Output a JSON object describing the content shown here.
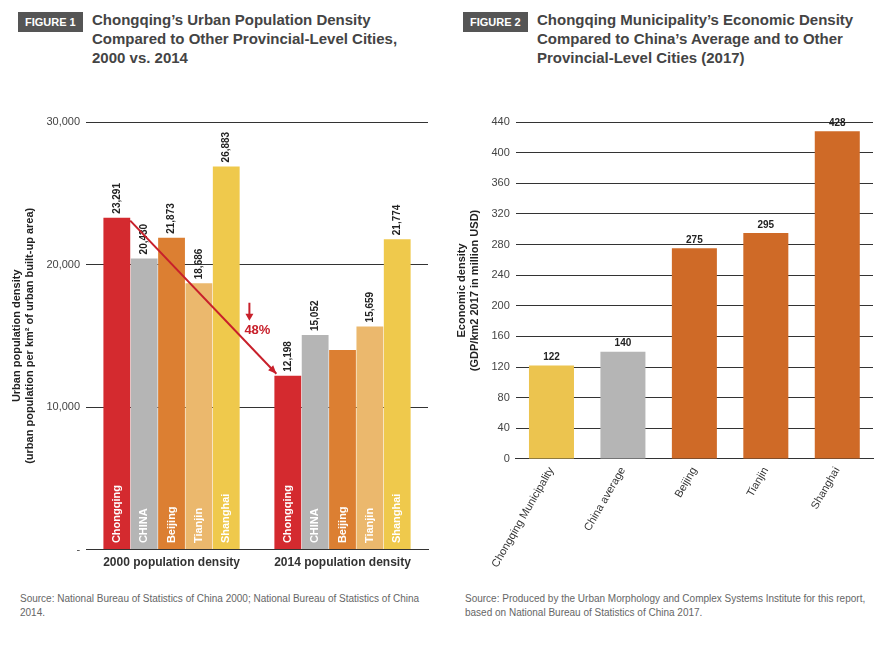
{
  "chart_data": [
    {
      "type": "bar",
      "label": "FIGURE 1",
      "title": "Chongqing’s Urban Population Density Compared to Other Provincial-Level Cities, 2000 vs. 2014",
      "ylabel": [
        "Urban population density",
        "(urban population per km² of urban built-up area)"
      ],
      "categories": [
        "2000 population density",
        "2014 population density"
      ],
      "series": [
        {
          "name": "Chongqing",
          "color": "#d42a2f",
          "values": [
            23291,
            12198
          ],
          "value_labels": [
            "23,291",
            "12,198"
          ]
        },
        {
          "name": "CHINA",
          "color": "#b5b5b5",
          "values": [
            20430,
            15052
          ],
          "value_labels": [
            "20,430",
            "15,052"
          ]
        },
        {
          "name": "Beijing",
          "color": "#dc7f32",
          "values": [
            21873,
            14000
          ],
          "value_labels": [
            "21,873",
            null
          ]
        },
        {
          "name": "Tianjin",
          "color": "#ebb86d",
          "values": [
            18686,
            15659
          ],
          "value_labels": [
            "18,686",
            "15,659"
          ]
        },
        {
          "name": "Shanghai",
          "color": "#efc94c",
          "values": [
            26883,
            21774
          ],
          "value_labels": [
            "26,883",
            "21,774"
          ]
        }
      ],
      "ylim": [
        0,
        30000
      ],
      "yticks": [
        {
          "value": 0,
          "label": "-"
        },
        {
          "value": 10000,
          "label": "10,000"
        },
        {
          "value": 20000,
          "label": "20,000"
        },
        {
          "value": 30000,
          "label": "30,000"
        }
      ],
      "grid": true,
      "data_labels": true,
      "annotations": [
        "48%"
      ],
      "source": "Source: National Bureau of Statistics of China 2000; National Bureau of Statistics of China 2014."
    },
    {
      "type": "bar",
      "label": "FIGURE 2",
      "title": "Chongqing Municipality’s Economic Density Compared to China’s Average and to Other Provincial-Level Cities (2017)",
      "ylabel": [
        "Economic density",
        "(GDP/km2 2017 in million USD)"
      ],
      "categories": [
        "Chongqing Municipality",
        "China average",
        "Beijing",
        "Tianjin",
        "Shanghai"
      ],
      "values": [
        122,
        140,
        275,
        295,
        428
      ],
      "colors": [
        "#ecc44f",
        "#b5b5b5",
        "#cf6a27",
        "#cf6a27",
        "#cf6a27"
      ],
      "ylim": [
        0,
        440
      ],
      "yticks": [
        0,
        40,
        80,
        120,
        160,
        200,
        240,
        280,
        320,
        360,
        400,
        440
      ],
      "grid": true,
      "data_labels": true,
      "source": "Source: Produced by the Urban Morphology and Complex Systems Institute for this report, based on National Bureau of Statistics of China 2017."
    }
  ]
}
